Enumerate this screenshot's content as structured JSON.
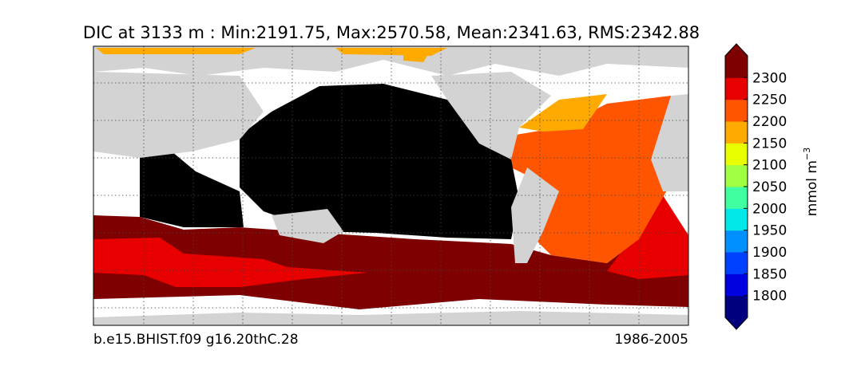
{
  "title": "DIC at 3133 m : Min:2191.75, Max:2570.58, Mean:2341.63, RMS:2342.88",
  "colorbar": {
    "label": "mmol m",
    "label_exponent": "−3",
    "ticks": [
      1800,
      1850,
      1900,
      1950,
      2000,
      2050,
      2100,
      2150,
      2200,
      2250,
      2300
    ],
    "colors": [
      "#00007f",
      "#0000e0",
      "#0040ff",
      "#0090ff",
      "#00e8e8",
      "#40ffa0",
      "#a0ff40",
      "#e8ff00",
      "#ffaa00",
      "#ff5500",
      "#e80000",
      "#7f0000"
    ]
  },
  "footer": {
    "left": "b.e15.BHIST.f09 g16.20thC.28",
    "right": "1986-2005"
  }
}
